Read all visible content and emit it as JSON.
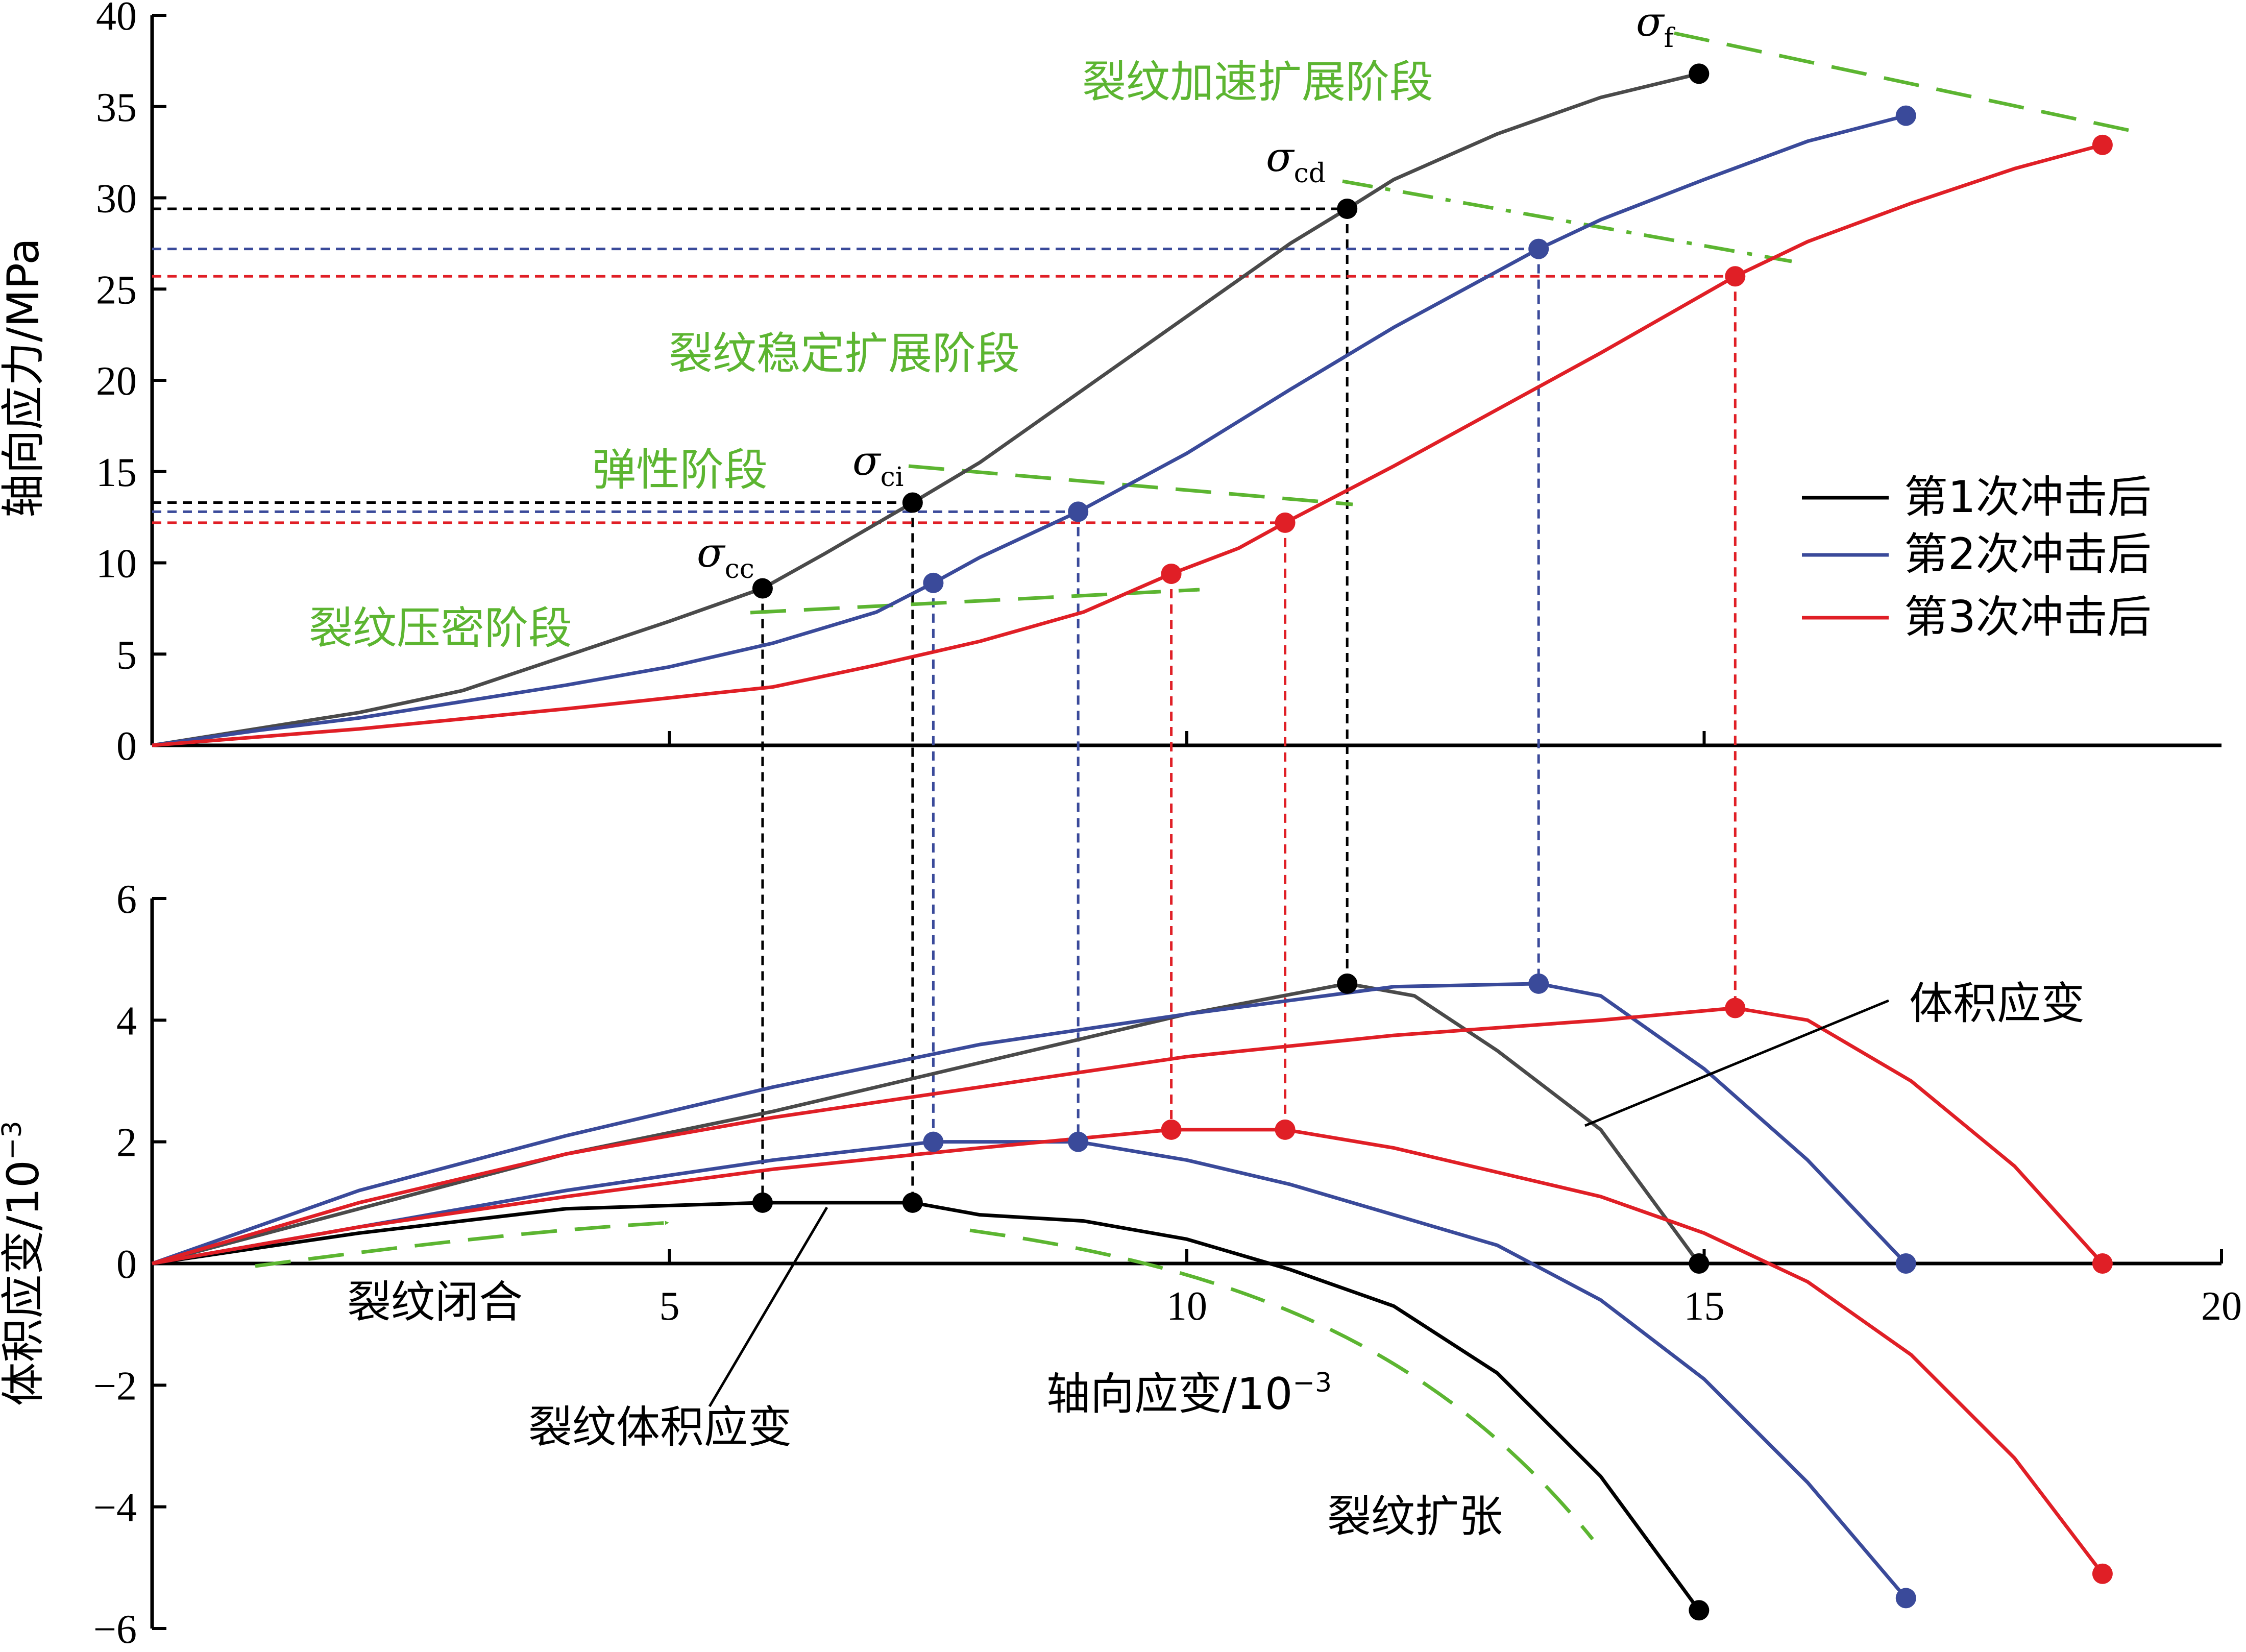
{
  "chart_data": [
    {
      "type": "line",
      "panel": "top",
      "ylabel": "轴向应力/MPa",
      "xlim": [
        0,
        20
      ],
      "ylim": [
        0,
        40
      ],
      "y_ticks": [
        0,
        5,
        10,
        15,
        20,
        25,
        30,
        35,
        40
      ],
      "x_tick_positions": [
        5,
        10,
        15
      ],
      "legend_position": "right",
      "series": [
        {
          "name": "第1次冲击后",
          "color": "#4a4a4a",
          "x": [
            0,
            1,
            2,
            3,
            4,
            5,
            5.9,
            6.5,
            7.35,
            8,
            9,
            10,
            11,
            11.55,
            12,
            13,
            14,
            14.95
          ],
          "y": [
            0,
            0.9,
            1.8,
            3.0,
            4.9,
            6.8,
            8.6,
            10.5,
            13.3,
            15.5,
            19.5,
            23.5,
            27.5,
            29.4,
            31.0,
            33.5,
            35.5,
            36.8
          ]
        },
        {
          "name": "第2次冲击后",
          "color": "#3a4a9a",
          "x": [
            0,
            1,
            2,
            3,
            4,
            5,
            6,
            7,
            7.55,
            8,
            8.95,
            10,
            11,
            12,
            13.4,
            14,
            15,
            16,
            16.95
          ],
          "y": [
            0,
            0.8,
            1.5,
            2.4,
            3.3,
            4.3,
            5.6,
            7.3,
            8.9,
            10.3,
            12.8,
            16.0,
            19.5,
            22.9,
            27.2,
            28.8,
            31.0,
            33.1,
            34.5
          ]
        },
        {
          "name": "第3次冲击后",
          "color": "#e01f26",
          "x": [
            0,
            2,
            4,
            6,
            7,
            8,
            9,
            9.85,
            10.5,
            10.95,
            12,
            13,
            14,
            15.3,
            16,
            17,
            18,
            18.85
          ],
          "y": [
            0,
            0.9,
            2.0,
            3.2,
            4.4,
            5.7,
            7.3,
            9.4,
            10.8,
            12.2,
            15.3,
            18.4,
            21.5,
            25.7,
            27.6,
            29.7,
            31.6,
            32.9
          ]
        }
      ],
      "key_points": [
        {
          "series": 1,
          "x": 5.9,
          "y": 8.6
        },
        {
          "series": 1,
          "x": 7.35,
          "y": 13.3
        },
        {
          "series": 1,
          "x": 11.55,
          "y": 29.4
        },
        {
          "series": 1,
          "x": 14.95,
          "y": 36.8
        },
        {
          "series": 2,
          "x": 7.55,
          "y": 8.9
        },
        {
          "series": 2,
          "x": 8.95,
          "y": 12.8
        },
        {
          "series": 2,
          "x": 13.4,
          "y": 27.2
        },
        {
          "series": 2,
          "x": 16.95,
          "y": 34.5
        },
        {
          "series": 3,
          "x": 9.85,
          "y": 9.4
        },
        {
          "series": 3,
          "x": 10.95,
          "y": 12.2
        },
        {
          "series": 3,
          "x": 15.3,
          "y": 25.7
        },
        {
          "series": 3,
          "x": 18.85,
          "y": 32.9
        }
      ],
      "stage_labels": [
        "裂纹加速扩展阶段",
        "裂纹稳定扩展阶段",
        "弹性阶段",
        "裂纹压密阶段"
      ],
      "point_labels": {
        "cc": "cc",
        "ci": "ci",
        "cd": "cd",
        "f": "f",
        "sigma": "σ"
      }
    },
    {
      "type": "line",
      "panel": "bottom",
      "xlabel_main": "轴向应变/10",
      "xlabel_exp": "−3",
      "ylabel_main": "体积应变/10",
      "ylabel_exp": "−3",
      "xlim": [
        0,
        20
      ],
      "ylim": [
        -6,
        6
      ],
      "x_ticks": [
        5,
        10,
        15,
        20
      ],
      "y_ticks": [
        6,
        4,
        2,
        0,
        -2,
        -4,
        -6
      ],
      "y_tick_labels": [
        "6",
        "4",
        "2",
        "0",
        "−2",
        "−4",
        "−6"
      ],
      "volumetric_strain": [
        {
          "name": "第1次冲击后",
          "color": "#4a4a4a",
          "x": [
            0,
            2,
            4,
            6,
            8,
            10,
            11.55,
            12.2,
            13,
            14,
            14.95
          ],
          "y": [
            0,
            0.9,
            1.8,
            2.5,
            3.3,
            4.1,
            4.6,
            4.4,
            3.5,
            2.2,
            0
          ]
        },
        {
          "name": "第2次冲击后",
          "color": "#3a4a9a",
          "x": [
            0,
            2,
            4,
            6,
            8,
            10,
            12,
            13.4,
            14,
            15,
            16,
            16.95
          ],
          "y": [
            0,
            1.2,
            2.1,
            2.9,
            3.6,
            4.1,
            4.55,
            4.6,
            4.4,
            3.2,
            1.7,
            0
          ]
        },
        {
          "name": "第3次冲击后",
          "color": "#e01f26",
          "x": [
            0,
            2,
            4,
            6,
            8,
            10,
            12,
            14,
            15.3,
            16,
            17,
            18,
            18.85
          ],
          "y": [
            0,
            1.0,
            1.8,
            2.4,
            2.9,
            3.4,
            3.75,
            4.0,
            4.2,
            4.0,
            3.0,
            1.6,
            0
          ]
        }
      ],
      "crack_volumetric_strain": [
        {
          "name": "第1次冲击后",
          "color": "#000000",
          "x": [
            0,
            2,
            4,
            5.9,
            7.35,
            8,
            9,
            10,
            11,
            12,
            13,
            14,
            14.95
          ],
          "y": [
            0,
            0.5,
            0.9,
            1.0,
            1.0,
            0.8,
            0.7,
            0.4,
            -0.1,
            -0.7,
            -1.8,
            -3.5,
            -5.7
          ]
        },
        {
          "name": "第2次冲击后",
          "color": "#3a4a9a",
          "x": [
            0,
            2,
            4,
            6,
            7.55,
            8.95,
            10,
            11,
            12,
            13,
            14,
            15,
            16,
            16.95
          ],
          "y": [
            0,
            0.6,
            1.2,
            1.7,
            2.0,
            2.0,
            1.7,
            1.3,
            0.8,
            0.3,
            -0.6,
            -1.9,
            -3.6,
            -5.5
          ]
        },
        {
          "name": "第3次冲击后",
          "color": "#e01f26",
          "x": [
            0,
            2,
            4,
            6,
            8,
            9.85,
            10.95,
            12,
            13,
            14,
            15,
            16,
            17,
            18,
            18.85
          ],
          "y": [
            0,
            0.6,
            1.1,
            1.55,
            1.9,
            2.2,
            2.2,
            1.9,
            1.5,
            1.1,
            0.5,
            -0.3,
            -1.5,
            -3.2,
            -5.1
          ]
        }
      ],
      "key_points": [
        {
          "series": 1,
          "x": 5.9,
          "y": 1.0
        },
        {
          "series": 1,
          "x": 7.35,
          "y": 1.0
        },
        {
          "series": 1,
          "x": 11.55,
          "y": 4.6
        },
        {
          "series": 1,
          "x": 14.95,
          "y": 0
        },
        {
          "series": 1,
          "x": 14.95,
          "y": -5.7
        },
        {
          "series": 2,
          "x": 7.55,
          "y": 2.0
        },
        {
          "series": 2,
          "x": 8.95,
          "y": 2.0
        },
        {
          "series": 2,
          "x": 13.4,
          "y": 4.6
        },
        {
          "series": 2,
          "x": 16.95,
          "y": 0
        },
        {
          "series": 2,
          "x": 16.95,
          "y": -5.5
        },
        {
          "series": 3,
          "x": 9.85,
          "y": 2.2
        },
        {
          "series": 3,
          "x": 10.95,
          "y": 2.2
        },
        {
          "series": 3,
          "x": 15.3,
          "y": 4.2
        },
        {
          "series": 3,
          "x": 18.85,
          "y": 0
        },
        {
          "series": 3,
          "x": 18.85,
          "y": -5.1
        }
      ],
      "annotations": {
        "volumetric": "体积应变",
        "crack_volumetric": "裂纹体积应变",
        "closure": "裂纹闭合",
        "expansion": "裂纹扩张"
      }
    }
  ],
  "colors": {
    "s1": "#4a4a4a",
    "s1_dark": "#000000",
    "s2": "#3a4a9a",
    "s3": "#e01f26",
    "annotation": "#5cb531"
  }
}
